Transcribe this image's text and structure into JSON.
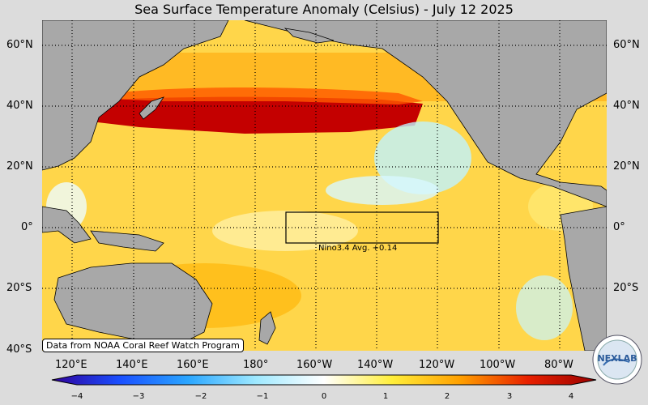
{
  "title": "Sea Surface Temperature Anomaly (Celsius) - July 12 2025",
  "credit": "Data from NOAA Coral Reef Watch Program",
  "nino_label": "Nino3.4 Avg. +0.14",
  "lat_labels": [
    "60°N",
    "40°N",
    "20°N",
    "0°",
    "20°S",
    "40°S"
  ],
  "lon_labels": [
    "120°E",
    "140°E",
    "160°E",
    "180°",
    "160°W",
    "140°W",
    "120°W",
    "100°W",
    "80°W"
  ],
  "colorbar": {
    "ticks": [
      "−4",
      "−3",
      "−2",
      "−1",
      "0",
      "1",
      "2",
      "3",
      "4"
    ],
    "colors": [
      "#30009a",
      "#1a4fff",
      "#2aa6ff",
      "#9fe9ff",
      "#ffffff",
      "#ffee3a",
      "#ffa000",
      "#e82000",
      "#9a0000"
    ]
  },
  "logo": {
    "text": "NEXLAB"
  }
}
